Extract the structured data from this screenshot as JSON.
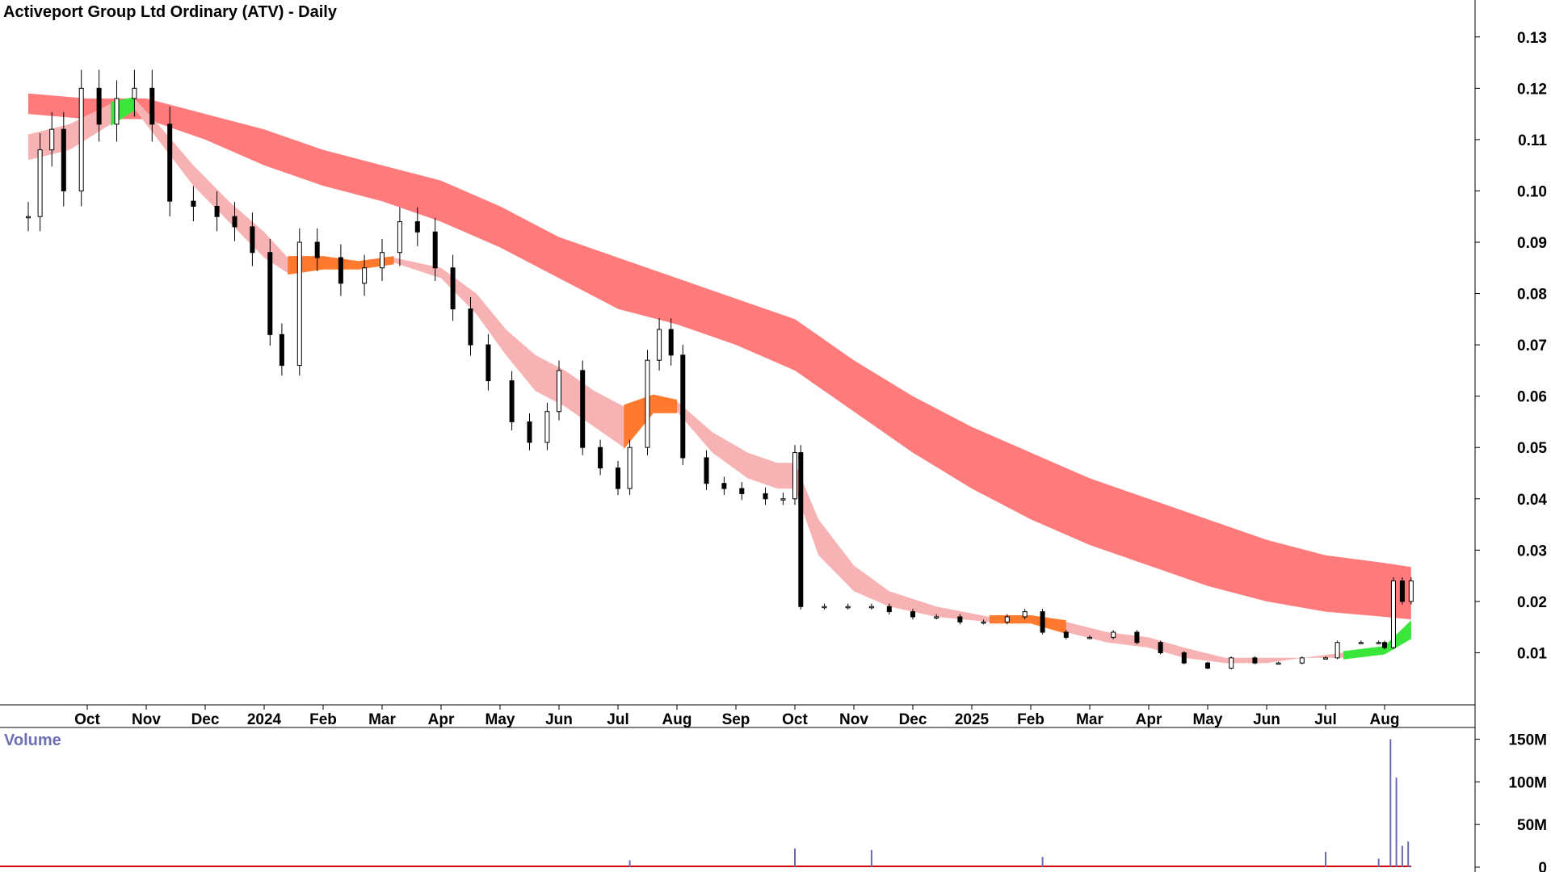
{
  "chart_data": {
    "type": "candlestick",
    "title": "Activeport Group Ltd Ordinary (ATV) - Daily",
    "price_axis": {
      "ticks": [
        "0.01",
        "0.02",
        "0.03",
        "0.04",
        "0.05",
        "0.06",
        "0.07",
        "0.08",
        "0.09",
        "0.10",
        "0.11",
        "0.12",
        "0.13"
      ],
      "ylim": [
        0.0,
        0.135
      ]
    },
    "x_axis": {
      "labels": [
        {
          "text": "Oct",
          "m": 1
        },
        {
          "text": "Nov",
          "m": 2
        },
        {
          "text": "Dec",
          "m": 3
        },
        {
          "text": "2024",
          "m": 4
        },
        {
          "text": "Feb",
          "m": 5
        },
        {
          "text": "Mar",
          "m": 6
        },
        {
          "text": "Apr",
          "m": 7
        },
        {
          "text": "May",
          "m": 8
        },
        {
          "text": "Jun",
          "m": 9
        },
        {
          "text": "Jul",
          "m": 10
        },
        {
          "text": "Aug",
          "m": 11
        },
        {
          "text": "Sep",
          "m": 12
        },
        {
          "text": "Oct",
          "m": 13
        },
        {
          "text": "Nov",
          "m": 14
        },
        {
          "text": "Dec",
          "m": 15
        },
        {
          "text": "2025",
          "m": 16
        },
        {
          "text": "Feb",
          "m": 17
        },
        {
          "text": "Mar",
          "m": 18
        },
        {
          "text": "Apr",
          "m": 19
        },
        {
          "text": "May",
          "m": 20
        },
        {
          "text": "Jun",
          "m": 21
        },
        {
          "text": "Jul",
          "m": 22
        },
        {
          "text": "Aug",
          "m": 23
        }
      ]
    },
    "price_series": [
      {
        "m": 0.0,
        "v": 0.095
      },
      {
        "m": 0.2,
        "v": 0.108
      },
      {
        "m": 0.4,
        "v": 0.112
      },
      {
        "m": 0.6,
        "v": 0.1
      },
      {
        "m": 0.9,
        "v": 0.12
      },
      {
        "m": 1.2,
        "v": 0.113
      },
      {
        "m": 1.5,
        "v": 0.118
      },
      {
        "m": 1.8,
        "v": 0.12
      },
      {
        "m": 2.1,
        "v": 0.113
      },
      {
        "m": 2.4,
        "v": 0.098
      },
      {
        "m": 2.8,
        "v": 0.097
      },
      {
        "m": 3.2,
        "v": 0.095
      },
      {
        "m": 3.5,
        "v": 0.093
      },
      {
        "m": 3.8,
        "v": 0.088
      },
      {
        "m": 4.1,
        "v": 0.072
      },
      {
        "m": 4.3,
        "v": 0.066
      },
      {
        "m": 4.6,
        "v": 0.09
      },
      {
        "m": 4.9,
        "v": 0.087
      },
      {
        "m": 5.3,
        "v": 0.082
      },
      {
        "m": 5.7,
        "v": 0.085
      },
      {
        "m": 6.0,
        "v": 0.088
      },
      {
        "m": 6.3,
        "v": 0.094
      },
      {
        "m": 6.6,
        "v": 0.092
      },
      {
        "m": 6.9,
        "v": 0.085
      },
      {
        "m": 7.2,
        "v": 0.077
      },
      {
        "m": 7.5,
        "v": 0.07
      },
      {
        "m": 7.8,
        "v": 0.063
      },
      {
        "m": 8.2,
        "v": 0.055
      },
      {
        "m": 8.5,
        "v": 0.051
      },
      {
        "m": 8.8,
        "v": 0.057
      },
      {
        "m": 9.0,
        "v": 0.065
      },
      {
        "m": 9.4,
        "v": 0.05
      },
      {
        "m": 9.7,
        "v": 0.046
      },
      {
        "m": 10.0,
        "v": 0.042
      },
      {
        "m": 10.2,
        "v": 0.05
      },
      {
        "m": 10.5,
        "v": 0.067
      },
      {
        "m": 10.7,
        "v": 0.073
      },
      {
        "m": 10.9,
        "v": 0.068
      },
      {
        "m": 11.1,
        "v": 0.048
      },
      {
        "m": 11.5,
        "v": 0.043
      },
      {
        "m": 11.8,
        "v": 0.042
      },
      {
        "m": 12.1,
        "v": 0.041
      },
      {
        "m": 12.5,
        "v": 0.04
      },
      {
        "m": 12.8,
        "v": 0.04
      },
      {
        "m": 13.0,
        "v": 0.049
      },
      {
        "m": 13.1,
        "v": 0.019
      },
      {
        "m": 13.5,
        "v": 0.019
      },
      {
        "m": 13.9,
        "v": 0.019
      },
      {
        "m": 14.3,
        "v": 0.019
      },
      {
        "m": 14.6,
        "v": 0.018
      },
      {
        "m": 15.0,
        "v": 0.017
      },
      {
        "m": 15.4,
        "v": 0.017
      },
      {
        "m": 15.8,
        "v": 0.016
      },
      {
        "m": 16.2,
        "v": 0.016
      },
      {
        "m": 16.6,
        "v": 0.017
      },
      {
        "m": 16.9,
        "v": 0.018
      },
      {
        "m": 17.2,
        "v": 0.014
      },
      {
        "m": 17.6,
        "v": 0.013
      },
      {
        "m": 18.0,
        "v": 0.013
      },
      {
        "m": 18.4,
        "v": 0.014
      },
      {
        "m": 18.8,
        "v": 0.012
      },
      {
        "m": 19.2,
        "v": 0.01
      },
      {
        "m": 19.6,
        "v": 0.008
      },
      {
        "m": 20.0,
        "v": 0.007
      },
      {
        "m": 20.4,
        "v": 0.009
      },
      {
        "m": 20.8,
        "v": 0.008
      },
      {
        "m": 21.2,
        "v": 0.008
      },
      {
        "m": 21.6,
        "v": 0.009
      },
      {
        "m": 22.0,
        "v": 0.009
      },
      {
        "m": 22.2,
        "v": 0.012
      },
      {
        "m": 22.6,
        "v": 0.012
      },
      {
        "m": 22.9,
        "v": 0.012
      },
      {
        "m": 23.0,
        "v": 0.011
      },
      {
        "m": 23.15,
        "v": 0.024
      },
      {
        "m": 23.3,
        "v": 0.02
      },
      {
        "m": 23.45,
        "v": 0.024
      }
    ],
    "fast_band": {
      "upper": [
        {
          "m": 0.0,
          "v": 0.111
        },
        {
          "m": 0.7,
          "v": 0.113
        },
        {
          "m": 1.4,
          "v": 0.117
        },
        {
          "m": 1.8,
          "v": 0.118
        },
        {
          "m": 2.2,
          "v": 0.113
        },
        {
          "m": 2.8,
          "v": 0.105
        },
        {
          "m": 3.4,
          "v": 0.098
        },
        {
          "m": 4.0,
          "v": 0.092
        },
        {
          "m": 4.4,
          "v": 0.087
        },
        {
          "m": 5.0,
          "v": 0.087
        },
        {
          "m": 5.6,
          "v": 0.086
        },
        {
          "m": 6.2,
          "v": 0.087
        },
        {
          "m": 7.0,
          "v": 0.085
        },
        {
          "m": 7.6,
          "v": 0.08
        },
        {
          "m": 8.1,
          "v": 0.073
        },
        {
          "m": 8.6,
          "v": 0.068
        },
        {
          "m": 9.1,
          "v": 0.065
        },
        {
          "m": 9.6,
          "v": 0.061
        },
        {
          "m": 10.1,
          "v": 0.058
        },
        {
          "m": 10.6,
          "v": 0.06
        },
        {
          "m": 11.0,
          "v": 0.059
        },
        {
          "m": 11.6,
          "v": 0.053
        },
        {
          "m": 12.2,
          "v": 0.049
        },
        {
          "m": 12.7,
          "v": 0.047
        },
        {
          "m": 13.0,
          "v": 0.047
        },
        {
          "m": 13.4,
          "v": 0.036
        },
        {
          "m": 14.0,
          "v": 0.027
        },
        {
          "m": 14.6,
          "v": 0.022
        },
        {
          "m": 15.4,
          "v": 0.019
        },
        {
          "m": 16.3,
          "v": 0.017
        },
        {
          "m": 17.0,
          "v": 0.017
        },
        {
          "m": 17.6,
          "v": 0.016
        },
        {
          "m": 18.3,
          "v": 0.014
        },
        {
          "m": 19.0,
          "v": 0.013
        },
        {
          "m": 19.6,
          "v": 0.011
        },
        {
          "m": 20.3,
          "v": 0.009
        },
        {
          "m": 21.0,
          "v": 0.009
        },
        {
          "m": 21.6,
          "v": 0.009
        },
        {
          "m": 22.3,
          "v": 0.01
        },
        {
          "m": 23.0,
          "v": 0.011
        },
        {
          "m": 23.45,
          "v": 0.016
        }
      ],
      "lower": [
        {
          "m": 0.0,
          "v": 0.106
        },
        {
          "m": 0.7,
          "v": 0.108
        },
        {
          "m": 1.4,
          "v": 0.113
        },
        {
          "m": 1.8,
          "v": 0.116
        },
        {
          "m": 2.2,
          "v": 0.11
        },
        {
          "m": 2.8,
          "v": 0.101
        },
        {
          "m": 3.4,
          "v": 0.094
        },
        {
          "m": 4.0,
          "v": 0.087
        },
        {
          "m": 4.4,
          "v": 0.084
        },
        {
          "m": 5.0,
          "v": 0.085
        },
        {
          "m": 5.6,
          "v": 0.085
        },
        {
          "m": 6.2,
          "v": 0.086
        },
        {
          "m": 7.0,
          "v": 0.083
        },
        {
          "m": 7.6,
          "v": 0.076
        },
        {
          "m": 8.1,
          "v": 0.068
        },
        {
          "m": 8.6,
          "v": 0.061
        },
        {
          "m": 9.1,
          "v": 0.058
        },
        {
          "m": 9.6,
          "v": 0.054
        },
        {
          "m": 10.1,
          "v": 0.05
        },
        {
          "m": 10.6,
          "v": 0.057
        },
        {
          "m": 11.0,
          "v": 0.057
        },
        {
          "m": 11.6,
          "v": 0.049
        },
        {
          "m": 12.2,
          "v": 0.044
        },
        {
          "m": 12.7,
          "v": 0.042
        },
        {
          "m": 13.0,
          "v": 0.042
        },
        {
          "m": 13.4,
          "v": 0.029
        },
        {
          "m": 14.0,
          "v": 0.022
        },
        {
          "m": 14.6,
          "v": 0.019
        },
        {
          "m": 15.4,
          "v": 0.017
        },
        {
          "m": 16.3,
          "v": 0.016
        },
        {
          "m": 17.0,
          "v": 0.016
        },
        {
          "m": 17.6,
          "v": 0.014
        },
        {
          "m": 18.3,
          "v": 0.012
        },
        {
          "m": 19.0,
          "v": 0.011
        },
        {
          "m": 19.6,
          "v": 0.009
        },
        {
          "m": 20.3,
          "v": 0.008
        },
        {
          "m": 21.0,
          "v": 0.008
        },
        {
          "m": 21.6,
          "v": 0.009
        },
        {
          "m": 22.3,
          "v": 0.009
        },
        {
          "m": 23.0,
          "v": 0.01
        },
        {
          "m": 23.45,
          "v": 0.013
        }
      ],
      "color": "#f7b3b3"
    },
    "slow_band": {
      "upper": [
        {
          "m": 0.0,
          "v": 0.119
        },
        {
          "m": 1.0,
          "v": 0.118
        },
        {
          "m": 2.0,
          "v": 0.118
        },
        {
          "m": 3.0,
          "v": 0.115
        },
        {
          "m": 4.0,
          "v": 0.112
        },
        {
          "m": 5.0,
          "v": 0.108
        },
        {
          "m": 6.0,
          "v": 0.105
        },
        {
          "m": 7.0,
          "v": 0.102
        },
        {
          "m": 8.0,
          "v": 0.097
        },
        {
          "m": 9.0,
          "v": 0.091
        },
        {
          "m": 10.0,
          "v": 0.087
        },
        {
          "m": 11.0,
          "v": 0.083
        },
        {
          "m": 12.0,
          "v": 0.079
        },
        {
          "m": 13.0,
          "v": 0.075
        },
        {
          "m": 14.0,
          "v": 0.067
        },
        {
          "m": 15.0,
          "v": 0.06
        },
        {
          "m": 16.0,
          "v": 0.054
        },
        {
          "m": 17.0,
          "v": 0.049
        },
        {
          "m": 18.0,
          "v": 0.044
        },
        {
          "m": 19.0,
          "v": 0.04
        },
        {
          "m": 20.0,
          "v": 0.036
        },
        {
          "m": 21.0,
          "v": 0.032
        },
        {
          "m": 22.0,
          "v": 0.029
        },
        {
          "m": 23.0,
          "v": 0.0275
        },
        {
          "m": 23.45,
          "v": 0.0267
        }
      ],
      "lower": [
        {
          "m": 0.0,
          "v": 0.115
        },
        {
          "m": 1.0,
          "v": 0.114
        },
        {
          "m": 2.0,
          "v": 0.114
        },
        {
          "m": 3.0,
          "v": 0.11
        },
        {
          "m": 4.0,
          "v": 0.105
        },
        {
          "m": 5.0,
          "v": 0.101
        },
        {
          "m": 6.0,
          "v": 0.098
        },
        {
          "m": 7.0,
          "v": 0.094
        },
        {
          "m": 8.0,
          "v": 0.089
        },
        {
          "m": 9.0,
          "v": 0.083
        },
        {
          "m": 10.0,
          "v": 0.077
        },
        {
          "m": 11.0,
          "v": 0.074
        },
        {
          "m": 12.0,
          "v": 0.07
        },
        {
          "m": 13.0,
          "v": 0.065
        },
        {
          "m": 14.0,
          "v": 0.057
        },
        {
          "m": 15.0,
          "v": 0.049
        },
        {
          "m": 16.0,
          "v": 0.042
        },
        {
          "m": 17.0,
          "v": 0.036
        },
        {
          "m": 18.0,
          "v": 0.031
        },
        {
          "m": 19.0,
          "v": 0.027
        },
        {
          "m": 20.0,
          "v": 0.023
        },
        {
          "m": 21.0,
          "v": 0.02
        },
        {
          "m": 22.0,
          "v": 0.018
        },
        {
          "m": 23.0,
          "v": 0.017
        },
        {
          "m": 23.45,
          "v": 0.0165
        }
      ],
      "color": "#ff7a7a"
    },
    "volume": {
      "title": "Volume",
      "ticks": [
        "0",
        "50M",
        "100M",
        "150M"
      ],
      "ylim": [
        0,
        160
      ],
      "spikes": [
        {
          "m": 10.2,
          "v": 8
        },
        {
          "m": 13.0,
          "v": 22
        },
        {
          "m": 14.3,
          "v": 20
        },
        {
          "m": 17.2,
          "v": 12
        },
        {
          "m": 22.0,
          "v": 18
        },
        {
          "m": 22.9,
          "v": 10
        },
        {
          "m": 23.1,
          "v": 150
        },
        {
          "m": 23.2,
          "v": 105
        },
        {
          "m": 23.3,
          "v": 25
        },
        {
          "m": 23.4,
          "v": 30
        }
      ],
      "color": "#6a6ab0",
      "base_color": "#d00000"
    },
    "colors": {
      "candle": "#000000",
      "up_cross": "#39e639",
      "down_cross": "#ff7a2e"
    },
    "grid": false
  }
}
